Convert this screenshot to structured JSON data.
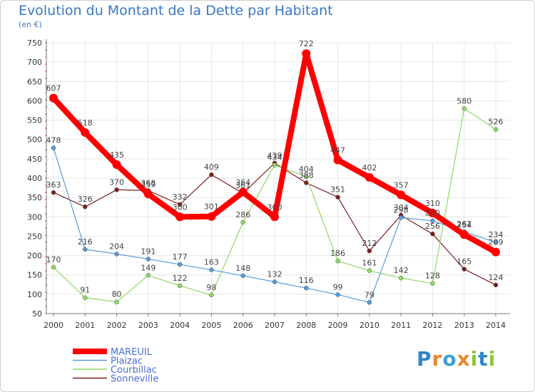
{
  "header": {
    "title": "Evolution du Montant de la Dette par Habitant",
    "subtitle": "(en €)"
  },
  "logo": {
    "text": "Proxiti",
    "letters": [
      "P",
      "r",
      "o",
      "x",
      "i",
      "t",
      "i"
    ],
    "letter_colors": [
      "#2f86c8",
      "#e6892e",
      "#3aa0d8",
      "#e6892e",
      "#8cc63e",
      "#2f86c8",
      "#8cc63e"
    ]
  },
  "chart_data": {
    "type": "line",
    "title": "Evolution du Montant de la Dette par Habitant",
    "subtitle": "(en €)",
    "xlabel": "",
    "ylabel": "",
    "ylim": [
      50,
      750
    ],
    "yticks": [
      50,
      100,
      150,
      200,
      250,
      300,
      350,
      400,
      450,
      500,
      550,
      600,
      650,
      700,
      750
    ],
    "x": [
      "2000",
      "2001",
      "2002",
      "2003",
      "2004",
      "2005",
      "2006",
      "2007",
      "2008",
      "2009",
      "2010",
      "2011",
      "2012",
      "2013",
      "2014"
    ],
    "grid": true,
    "legend_position": "bottom-left",
    "series": [
      {
        "name": "MAREUIL",
        "color": "#ff0000",
        "values": [
          607,
          518,
          435,
          359,
          300,
          301,
          364,
          300,
          722,
          447,
          402,
          357,
          310,
          254,
          209
        ]
      },
      {
        "name": "Plaizac",
        "color": "#5b9bd5",
        "values": [
          478,
          216,
          204,
          191,
          177,
          163,
          148,
          132,
          116,
          99,
          79,
          298,
          290,
          262,
          234
        ]
      },
      {
        "name": "Courbillac",
        "color": "#8ed864",
        "values": [
          170,
          91,
          80,
          149,
          122,
          98,
          286,
          434,
          404,
          186,
          161,
          142,
          128,
          580,
          526
        ]
      },
      {
        "name": "Sonneville",
        "color": "#7b1f1f",
        "values": [
          363,
          326,
          370,
          368,
          332,
          409,
          361,
          439,
          388,
          351,
          212,
          304,
          256,
          165,
          124
        ]
      }
    ]
  }
}
